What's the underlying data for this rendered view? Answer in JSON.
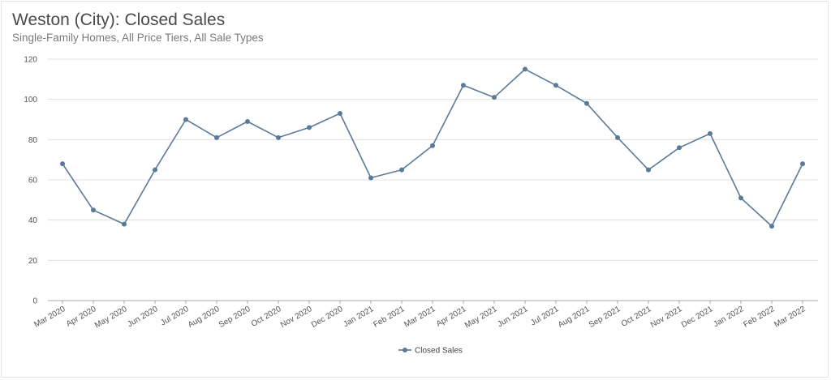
{
  "title": "Weston (City): Closed Sales",
  "subtitle": "Single-Family Homes, All Price Tiers, All Sale Types",
  "colors": {
    "series": "#5b7a9a",
    "grid": "#e0e0e0",
    "axis": "#aaaaaa"
  },
  "chart_data": {
    "type": "line",
    "title": "Weston (City): Closed Sales",
    "subtitle": "Single-Family Homes, All Price Tiers, All Sale Types",
    "xlabel": "",
    "ylabel": "",
    "ylim": [
      0,
      120
    ],
    "yticks": [
      0,
      20,
      40,
      60,
      80,
      100,
      120
    ],
    "grid": true,
    "legend_position": "bottom-center",
    "categories": [
      "Mar 2020",
      "Apr 2020",
      "May 2020",
      "Jun 2020",
      "Jul 2020",
      "Aug 2020",
      "Sep 2020",
      "Oct 2020",
      "Nov 2020",
      "Dec 2020",
      "Jan 2021",
      "Feb 2021",
      "Mar 2021",
      "Apr 2021",
      "May 2021",
      "Jun 2021",
      "Jul 2021",
      "Aug 2021",
      "Sep 2021",
      "Oct 2021",
      "Nov 2021",
      "Dec 2021",
      "Jan 2022",
      "Feb 2022",
      "Mar 2022"
    ],
    "series": [
      {
        "name": "Closed Sales",
        "values": [
          68,
          45,
          38,
          65,
          90,
          81,
          89,
          81,
          86,
          93,
          61,
          65,
          77,
          107,
          101,
          115,
          107,
          98,
          81,
          65,
          76,
          83,
          51,
          37,
          68
        ]
      }
    ]
  }
}
